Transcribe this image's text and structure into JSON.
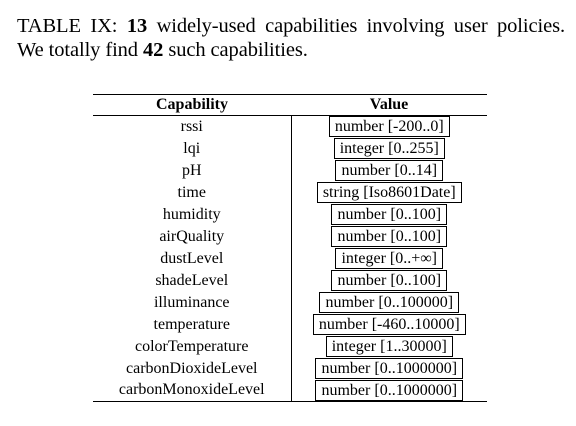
{
  "caption": {
    "label": "TABLE IX:",
    "count_capabilities": "13",
    "text_part1": "widely-used capabilities involving user policies. We totally find",
    "count_total": "42",
    "text_part2": "such capabilities."
  },
  "table": {
    "headers": [
      "Capability",
      "Value"
    ],
    "rows": [
      [
        "rssi",
        "number [-200..0]"
      ],
      [
        "lqi",
        "integer [0..255]"
      ],
      [
        "pH",
        "number [0..14]"
      ],
      [
        "time",
        "string [Iso8601Date]"
      ],
      [
        "humidity",
        "number [0..100]"
      ],
      [
        "airQuality",
        "number [0..100]"
      ],
      [
        "dustLevel",
        "integer [0..+∞]"
      ],
      [
        "shadeLevel",
        "number [0..100]"
      ],
      [
        "illuminance",
        "number [0..100000]"
      ],
      [
        "temperature",
        "number [-460..10000]"
      ],
      [
        "colorTemperature",
        "integer [1..30000]"
      ],
      [
        "carbonDioxideLevel",
        "number [0..1000000]"
      ],
      [
        "carbonMonoxideLevel",
        "number [0..1000000]"
      ]
    ]
  }
}
